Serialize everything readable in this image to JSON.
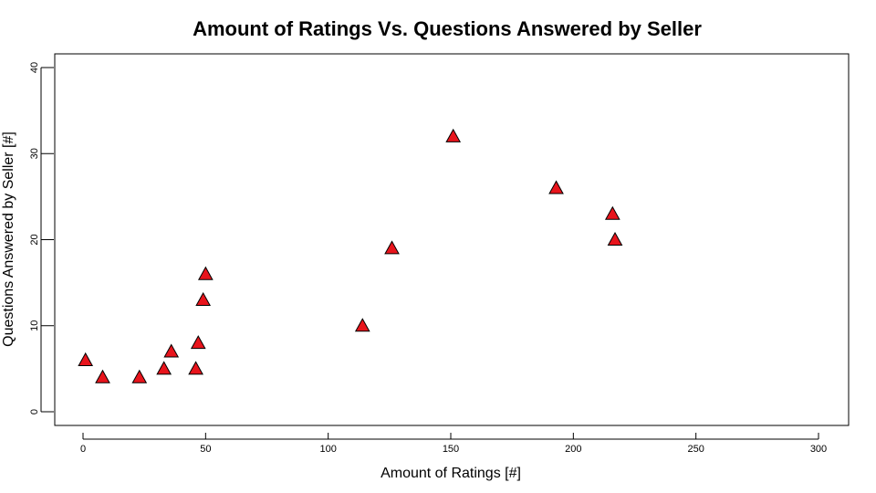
{
  "chart_data": {
    "type": "scatter",
    "title": "Amount of Ratings Vs. Questions Answered by Seller",
    "xlabel": "Amount of Ratings [#]",
    "ylabel": "Questions Answered by Seller [#]",
    "xlim": [
      0,
      300
    ],
    "ylim": [
      0,
      40
    ],
    "xticks": [
      0,
      50,
      100,
      150,
      200,
      250,
      300
    ],
    "yticks": [
      0,
      10,
      20,
      30,
      40
    ],
    "grid": false,
    "marker": "triangle",
    "marker_color": "#e8141c",
    "points": [
      {
        "x": 1,
        "y": 6
      },
      {
        "x": 8,
        "y": 4
      },
      {
        "x": 23,
        "y": 4
      },
      {
        "x": 33,
        "y": 5
      },
      {
        "x": 36,
        "y": 7
      },
      {
        "x": 46,
        "y": 5
      },
      {
        "x": 47,
        "y": 8
      },
      {
        "x": 49,
        "y": 13
      },
      {
        "x": 50,
        "y": 16
      },
      {
        "x": 114,
        "y": 10
      },
      {
        "x": 126,
        "y": 19
      },
      {
        "x": 151,
        "y": 32
      },
      {
        "x": 193,
        "y": 26
      },
      {
        "x": 216,
        "y": 23
      },
      {
        "x": 217,
        "y": 20
      }
    ]
  }
}
